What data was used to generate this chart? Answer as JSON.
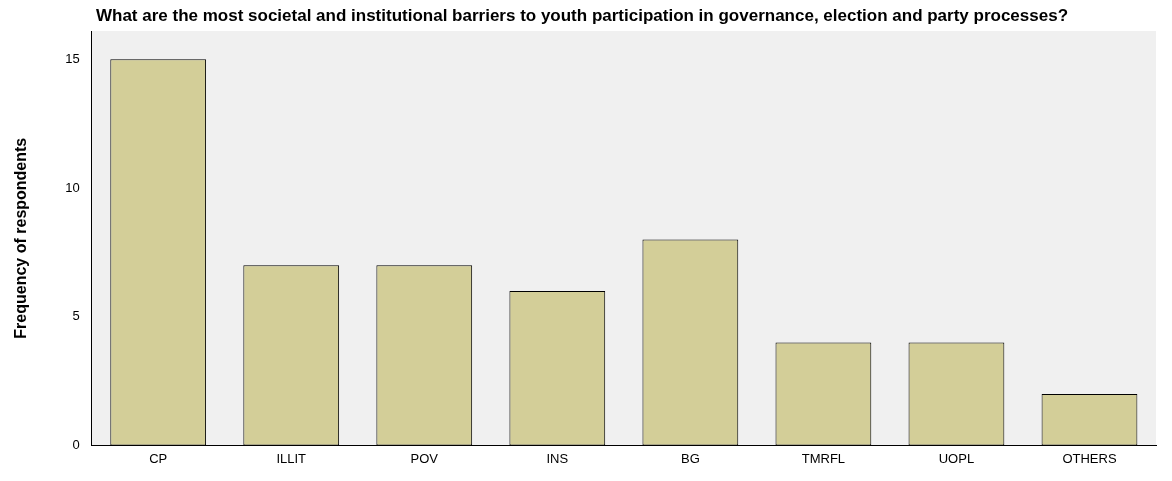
{
  "chart_data": {
    "type": "bar",
    "title": "What are the most societal and institutional barriers to youth participation in governance, election and party processes?",
    "ylabel": "Frequency of respondents",
    "categories": [
      "CP",
      "ILLIT",
      "POV",
      "INS",
      "BG",
      "TMRFL",
      "UOPL",
      "OTHERS"
    ],
    "values": [
      15,
      7,
      7,
      6,
      8,
      4,
      4,
      2
    ],
    "color": "#d3ce98",
    "ylim": [
      0,
      16.1
    ],
    "yticks": [
      0,
      5,
      10,
      15
    ],
    "grid": false,
    "legend": false
  }
}
